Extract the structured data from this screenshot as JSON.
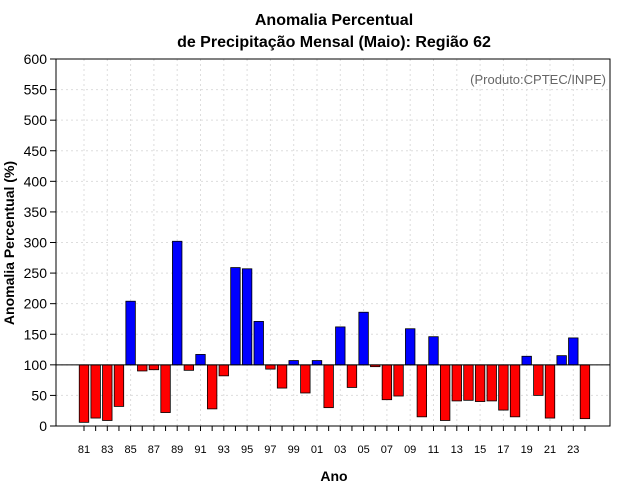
{
  "chart_data": {
    "type": "bar",
    "title_line1": "Anomalia Percentual",
    "title_line2": "de Precipitação Mensal (Maio): Região 62",
    "xlabel": "Ano",
    "ylabel": "Anomalia Percentual (%)",
    "credit": "(Produto:CPTEC/INPE)",
    "ylim": [
      0,
      600
    ],
    "baseline": 100,
    "yticks": [
      0,
      50,
      100,
      150,
      200,
      250,
      300,
      350,
      400,
      450,
      500,
      550,
      600
    ],
    "xtick_labels": [
      "81",
      "83",
      "85",
      "87",
      "89",
      "91",
      "93",
      "95",
      "97",
      "99",
      "01",
      "03",
      "05",
      "07",
      "09",
      "11",
      "13",
      "15",
      "17",
      "19",
      "21",
      "23"
    ],
    "categories": [
      "1981",
      "1982",
      "1983",
      "1984",
      "1985",
      "1986",
      "1987",
      "1988",
      "1989",
      "1990",
      "1991",
      "1992",
      "1993",
      "1994",
      "1995",
      "1996",
      "1997",
      "1998",
      "1999",
      "2000",
      "2001",
      "2002",
      "2003",
      "2004",
      "2005",
      "2006",
      "2007",
      "2008",
      "2009",
      "2010",
      "2011",
      "2012",
      "2013",
      "2014",
      "2015",
      "2016",
      "2017",
      "2018",
      "2019",
      "2020",
      "2021",
      "2022",
      "2023",
      "2024"
    ],
    "values": [
      6,
      13,
      9,
      32,
      204,
      90,
      92,
      22,
      302,
      91,
      117,
      28,
      82,
      259,
      257,
      171,
      93,
      62,
      107,
      54,
      107,
      30,
      162,
      63,
      186,
      97,
      43,
      49,
      159,
      15,
      146,
      9,
      41,
      42,
      40,
      41,
      26,
      15,
      114,
      50,
      13,
      115,
      144,
      12
    ],
    "positive_color": "#0000ff",
    "negative_color": "#ff0000",
    "grid": true
  }
}
